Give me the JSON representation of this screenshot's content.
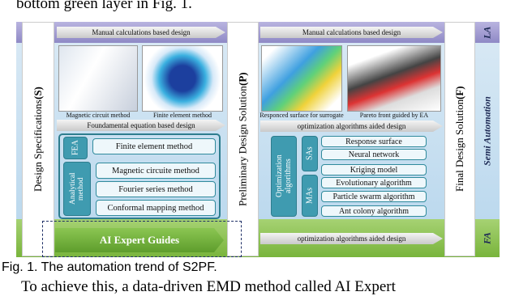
{
  "context": {
    "top_text": "bottom green layer in Fig. 1.",
    "bottom_text": "To achieve this, a data-driven EMD method called AI Expert"
  },
  "figure": {
    "layers": {
      "la": "LA",
      "semi": "Semi Automation",
      "fa": "FA"
    },
    "stages": [
      {
        "name": "Design Specifications",
        "symbol": "(S)"
      },
      {
        "name": "Preliminary Design Solution",
        "symbol": "(P)"
      },
      {
        "name": "Final Design Solution",
        "symbol": "(F)"
      }
    ],
    "arrows": {
      "manual_left": "Manual calculations based design",
      "manual_right": "Manual calculations based design",
      "fundamental": "Foundamental equation based design",
      "optimization_mid": "optimization algorithms aided design",
      "ai": "AI Expert Guides",
      "optimization_bottom": "optimization algorithms aided design"
    },
    "image_captions": [
      "Magnetic circuit method",
      "Finite element method",
      "Responced surface for surrogate",
      "Pareto front guided by EA"
    ],
    "left_methods": {
      "fea": {
        "label": "FEA",
        "items": [
          "Finite element method"
        ]
      },
      "analytical": {
        "label": "Analytical method",
        "items": [
          "Magnetic circuite method",
          "Fourier series method",
          "Conformal mapping method"
        ]
      }
    },
    "right_methods": {
      "label": "Optimization algorithms",
      "sas": {
        "label": "SAs",
        "items": [
          "Response surface",
          "Neural network",
          "Kriging model"
        ]
      },
      "mas": {
        "label": "MAs",
        "items": [
          "Evolutionary algorithm",
          "Particle swarm algorithm",
          "Ant colony algorithm"
        ]
      }
    }
  },
  "caption": "Fig. 1. The automation trend of S2PF."
}
